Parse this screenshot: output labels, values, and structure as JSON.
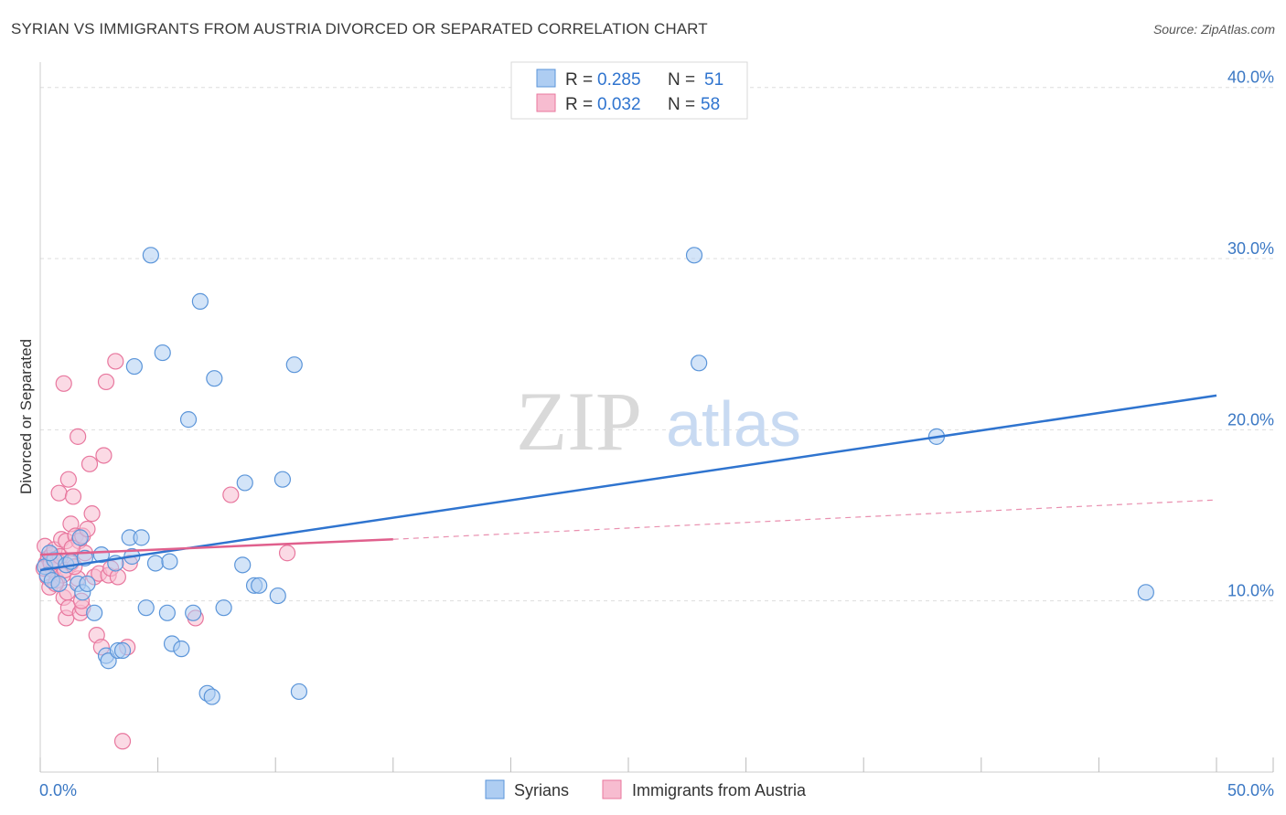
{
  "title": "SYRIAN VS IMMIGRANTS FROM AUSTRIA DIVORCED OR SEPARATED CORRELATION CHART",
  "source": "Source: ZipAtlas.com",
  "watermark": {
    "zip": "ZIP",
    "atlas": "atlas"
  },
  "colors": {
    "blue_fill": "#aecdf2",
    "blue_stroke": "#5b95d9",
    "blue_line": "#2f74cf",
    "pink_fill": "#f7bcd0",
    "pink_stroke": "#e8779e",
    "pink_line": "#e0608d",
    "axis_text": "#3b78c4",
    "grid": "#dddddd"
  },
  "legend": {
    "r_label": "R =",
    "n_label": "N =",
    "rows": [
      {
        "series": "Syrians",
        "r": "0.285",
        "n": "51"
      },
      {
        "series": "Immigrants from Austria",
        "r": "0.032",
        "n": "58"
      }
    ]
  },
  "chart_data": {
    "type": "scatter",
    "title": "SYRIAN VS IMMIGRANTS FROM AUSTRIA DIVORCED OR SEPARATED CORRELATION CHART",
    "xlabel": "",
    "ylabel": "Divorced or Separated",
    "xlim": [
      0,
      50
    ],
    "ylim": [
      0,
      41
    ],
    "x_tick_labels": [
      {
        "value": 0,
        "label": "0.0%"
      },
      {
        "value": 50,
        "label": "50.0%"
      }
    ],
    "y_tick_labels": [
      {
        "value": 10,
        "label": "10.0%"
      },
      {
        "value": 20,
        "label": "20.0%"
      },
      {
        "value": 30,
        "label": "30.0%"
      },
      {
        "value": 40,
        "label": "40.0%"
      }
    ],
    "series": [
      {
        "name": "Syrians",
        "color": "blue",
        "points": [
          [
            0.2,
            12.0
          ],
          [
            0.3,
            11.5
          ],
          [
            0.5,
            11.2
          ],
          [
            0.6,
            12.4
          ],
          [
            0.8,
            11.0
          ],
          [
            1.1,
            12.1
          ],
          [
            1.3,
            12.3
          ],
          [
            1.6,
            11.0
          ],
          [
            1.7,
            13.7
          ],
          [
            1.8,
            10.5
          ],
          [
            1.9,
            12.5
          ],
          [
            2.0,
            11.0
          ],
          [
            2.3,
            9.3
          ],
          [
            2.6,
            12.7
          ],
          [
            2.8,
            6.8
          ],
          [
            2.9,
            6.5
          ],
          [
            3.2,
            12.2
          ],
          [
            3.3,
            7.1
          ],
          [
            3.5,
            7.1
          ],
          [
            3.8,
            13.7
          ],
          [
            3.9,
            12.6
          ],
          [
            4.0,
            23.7
          ],
          [
            4.3,
            13.7
          ],
          [
            4.5,
            9.6
          ],
          [
            4.7,
            30.2
          ],
          [
            4.9,
            12.2
          ],
          [
            5.2,
            24.5
          ],
          [
            5.4,
            9.3
          ],
          [
            5.5,
            12.3
          ],
          [
            5.6,
            7.5
          ],
          [
            6.0,
            7.2
          ],
          [
            6.3,
            20.6
          ],
          [
            6.5,
            9.3
          ],
          [
            6.8,
            27.5
          ],
          [
            7.1,
            4.6
          ],
          [
            7.3,
            4.4
          ],
          [
            7.4,
            23.0
          ],
          [
            7.8,
            9.6
          ],
          [
            8.6,
            12.1
          ],
          [
            8.7,
            16.9
          ],
          [
            9.1,
            10.9
          ],
          [
            9.3,
            10.9
          ],
          [
            10.1,
            10.3
          ],
          [
            10.3,
            17.1
          ],
          [
            10.8,
            23.8
          ],
          [
            11.0,
            4.7
          ],
          [
            27.8,
            30.2
          ],
          [
            28.0,
            23.9
          ],
          [
            38.1,
            19.6
          ],
          [
            47.0,
            10.5
          ],
          [
            0.4,
            12.8
          ]
        ],
        "trend": {
          "x0": 0,
          "y0": 11.8,
          "x1": 50,
          "y1": 22.0
        }
      },
      {
        "name": "Immigrants from Austria",
        "color": "pink",
        "points": [
          [
            0.2,
            13.2
          ],
          [
            0.25,
            12.2
          ],
          [
            0.3,
            11.4
          ],
          [
            0.35,
            12.5
          ],
          [
            0.4,
            10.8
          ],
          [
            0.5,
            12.7
          ],
          [
            0.55,
            11.8
          ],
          [
            0.6,
            13.0
          ],
          [
            0.7,
            11.2
          ],
          [
            0.75,
            12.3
          ],
          [
            0.8,
            16.3
          ],
          [
            0.9,
            13.6
          ],
          [
            0.95,
            11.5
          ],
          [
            1.0,
            22.7
          ],
          [
            1.0,
            10.2
          ],
          [
            1.1,
            9.0
          ],
          [
            1.1,
            13.5
          ],
          [
            1.15,
            10.5
          ],
          [
            1.2,
            9.6
          ],
          [
            1.2,
            17.1
          ],
          [
            1.3,
            14.5
          ],
          [
            1.3,
            12.2
          ],
          [
            1.4,
            16.1
          ],
          [
            1.5,
            13.8
          ],
          [
            1.6,
            19.6
          ],
          [
            1.6,
            11.3
          ],
          [
            1.65,
            13.5
          ],
          [
            1.7,
            9.3
          ],
          [
            1.8,
            9.6
          ],
          [
            1.8,
            13.8
          ],
          [
            1.9,
            12.8
          ],
          [
            2.0,
            14.2
          ],
          [
            2.1,
            18.0
          ],
          [
            2.2,
            15.1
          ],
          [
            2.3,
            11.4
          ],
          [
            2.4,
            8.0
          ],
          [
            2.5,
            11.6
          ],
          [
            2.6,
            7.3
          ],
          [
            2.7,
            18.5
          ],
          [
            2.8,
            22.8
          ],
          [
            2.9,
            11.5
          ],
          [
            3.0,
            11.9
          ],
          [
            3.2,
            24.0
          ],
          [
            3.3,
            11.4
          ],
          [
            3.5,
            1.8
          ],
          [
            3.7,
            7.3
          ],
          [
            3.8,
            12.2
          ],
          [
            6.6,
            9.0
          ],
          [
            8.1,
            16.2
          ],
          [
            10.5,
            12.8
          ],
          [
            0.15,
            11.9
          ],
          [
            0.45,
            12.2
          ],
          [
            0.65,
            11.0
          ],
          [
            0.85,
            12.6
          ],
          [
            1.05,
            11.8
          ],
          [
            1.35,
            13.1
          ],
          [
            1.45,
            12.0
          ],
          [
            1.75,
            10.0
          ]
        ],
        "trend_solid": {
          "x0": 0,
          "y0": 12.7,
          "x1": 15,
          "y1": 13.6
        },
        "trend_dashed": {
          "x0": 15,
          "y0": 13.6,
          "x1": 50,
          "y1": 15.9
        }
      }
    ]
  }
}
